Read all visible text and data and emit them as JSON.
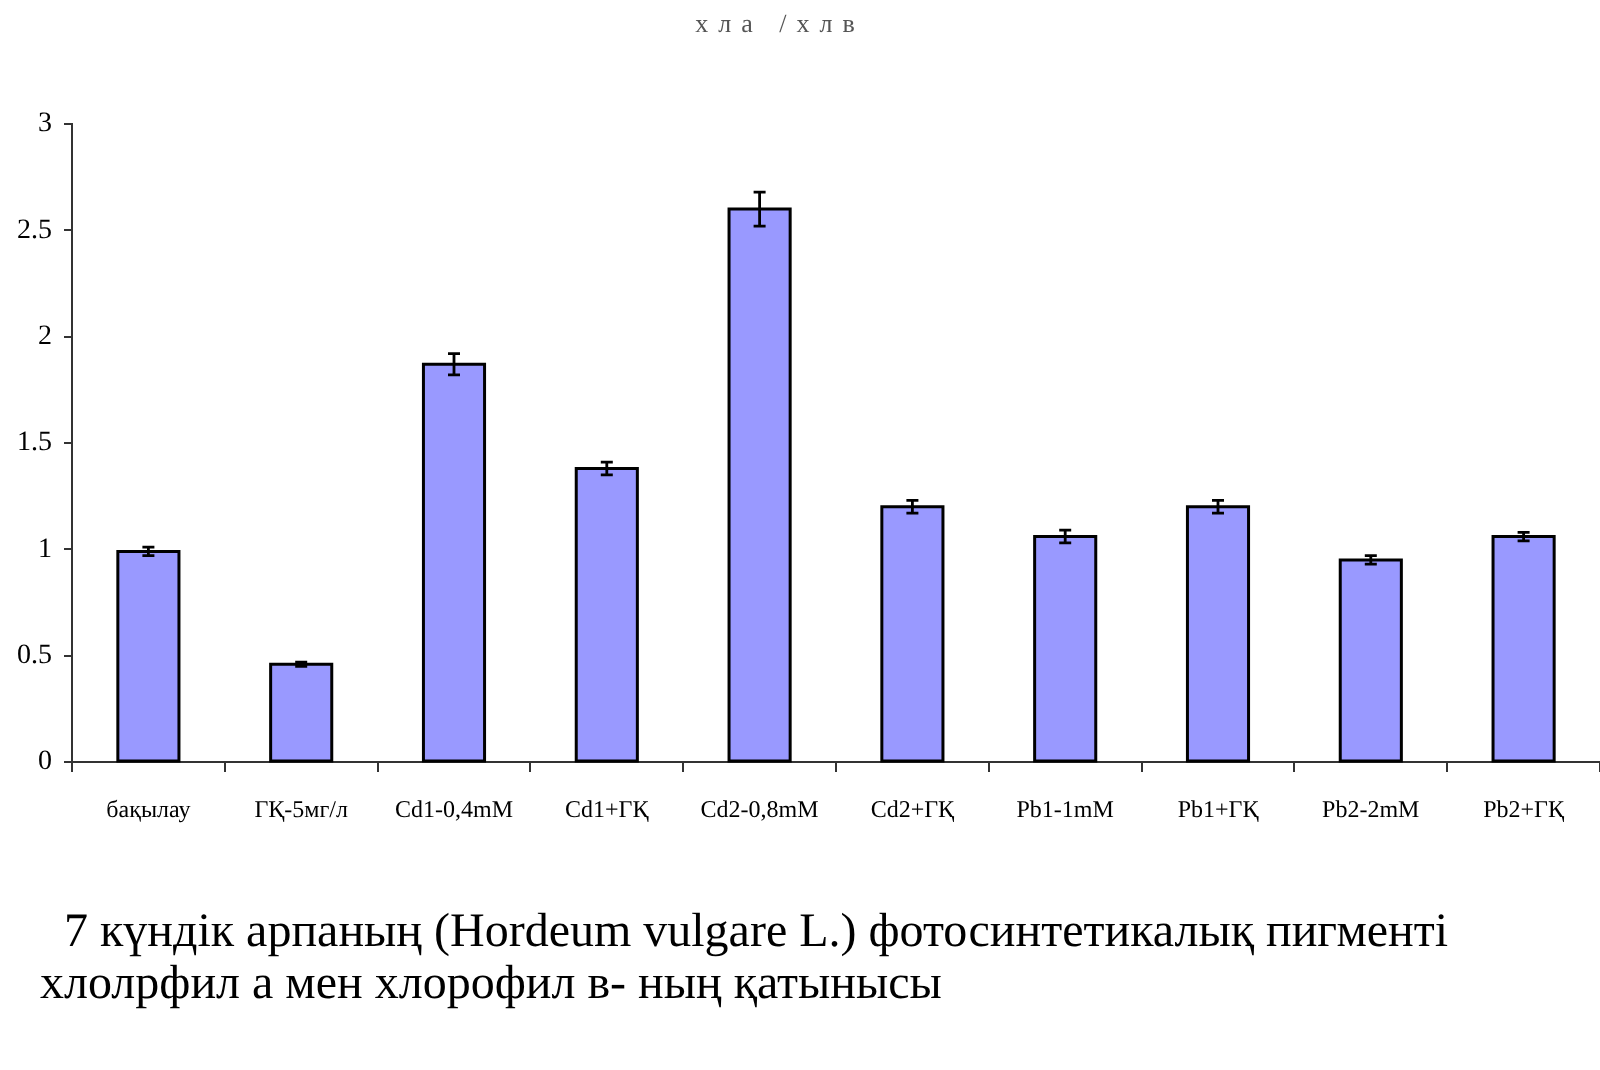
{
  "chart_data": {
    "type": "bar",
    "title": "хла /хлв",
    "categories": [
      "бақылау",
      "ГҚ-5мг/л",
      "Cd1-0,4mM",
      "Cd1+ГҚ",
      "Cd2-0,8mM",
      "Cd2+ГҚ",
      "Pb1-1mM",
      "Pb1+ГҚ",
      "Pb2-2mM",
      "Pb2+ГҚ"
    ],
    "values": [
      0.99,
      0.46,
      1.87,
      1.38,
      2.6,
      1.2,
      1.06,
      1.2,
      0.95,
      1.06
    ],
    "errors": [
      0.02,
      0.01,
      0.05,
      0.03,
      0.08,
      0.03,
      0.03,
      0.03,
      0.02,
      0.02
    ],
    "color": "#9999ff",
    "ylim": [
      0,
      3
    ],
    "yticks": [
      0,
      0.5,
      1,
      1.5,
      2,
      2.5,
      3
    ],
    "annotations": [
      "7 күндік арпаның (Hordeum vulgare L.) фотосинтетикалық пигменті хлолрфил а мен хлорофил в- ның қатынысы"
    ]
  }
}
